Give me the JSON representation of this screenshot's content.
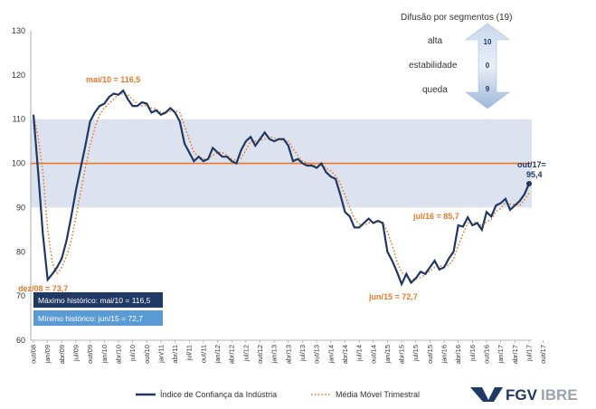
{
  "chart_data": {
    "type": "line",
    "ylim": [
      60,
      130
    ],
    "yticks": [
      60,
      70,
      80,
      90,
      100,
      110,
      120,
      130
    ],
    "neutral_line": 100,
    "band": [
      90,
      110
    ],
    "x_labels": [
      "out/08",
      "jan/09",
      "abr/09",
      "jul/09",
      "out/09",
      "jan/10",
      "abr/10",
      "jul/10",
      "out/10",
      "jan/11",
      "abr/11",
      "jul/11",
      "out/11",
      "jan/12",
      "abr/12",
      "jul/12",
      "out/12",
      "jan/13",
      "abr/13",
      "jul/13",
      "out/13",
      "jan/14",
      "abr/14",
      "jul/14",
      "out/14",
      "jan/15",
      "abr/15",
      "jul/15",
      "out/15",
      "jan/16",
      "abr/16",
      "jul/16",
      "out/16",
      "jan/17",
      "abr/17",
      "jul/17",
      "out/17"
    ],
    "series": [
      {
        "name": "Índice de Confiança da Indústria",
        "color": "#1F3864",
        "style": "solid",
        "values": [
          111.0,
          98.0,
          84.0,
          73.7,
          75.0,
          76.5,
          78.5,
          82.5,
          88.0,
          94.0,
          99.0,
          104.0,
          109.5,
          111.5,
          113.0,
          113.5,
          115.0,
          115.8,
          115.5,
          116.5,
          114.5,
          113.0,
          113.0,
          113.8,
          113.5,
          111.5,
          112.0,
          111.0,
          111.5,
          112.5,
          111.5,
          109.5,
          104.5,
          102.5,
          100.5,
          101.5,
          100.5,
          101.0,
          103.5,
          102.5,
          101.5,
          101.5,
          100.5,
          100.0,
          103.0,
          105.0,
          106.0,
          104.0,
          105.5,
          107.0,
          105.5,
          105.0,
          105.5,
          105.5,
          104.0,
          100.5,
          101.0,
          100.0,
          99.5,
          99.5,
          99.0,
          100.0,
          98.0,
          97.0,
          96.5,
          93.0,
          89.0,
          88.0,
          85.5,
          85.5,
          86.5,
          87.5,
          86.5,
          87.0,
          86.5,
          80.0,
          78.0,
          75.5,
          72.7,
          75.0,
          73.0,
          74.0,
          75.5,
          75.0,
          76.5,
          78.0,
          76.0,
          76.5,
          78.5,
          80.0,
          86.0,
          85.7,
          87.8,
          86.0,
          86.5,
          85.0,
          89.0,
          88.0,
          90.5,
          91.0,
          92.0,
          89.5,
          90.5,
          91.5,
          93.0,
          95.4
        ]
      },
      {
        "name": "Média Móvel Trimestral",
        "color": "#E8792A",
        "style": "dotted",
        "values": [
          111.0,
          106.0,
          98.0,
          85.0,
          77.5,
          75.0,
          76.5,
          79.0,
          82.5,
          88.0,
          93.5,
          99.0,
          104.0,
          108.0,
          111.0,
          112.5,
          113.5,
          114.5,
          115.5,
          115.8,
          115.5,
          114.5,
          113.5,
          113.0,
          113.2,
          112.5,
          112.3,
          111.5,
          111.5,
          111.8,
          112.0,
          111.5,
          108.5,
          105.5,
          102.5,
          101.5,
          101.0,
          101.0,
          101.8,
          102.5,
          102.5,
          101.8,
          101.0,
          100.7,
          101.2,
          103.0,
          105.0,
          105.0,
          105.2,
          105.5,
          106.0,
          105.8,
          105.3,
          105.3,
          105.0,
          103.3,
          101.8,
          100.5,
          100.2,
          99.7,
          99.3,
          99.5,
          99.0,
          98.3,
          97.2,
          95.5,
          92.8,
          90.0,
          87.5,
          86.3,
          86.0,
          86.5,
          86.8,
          87.0,
          86.7,
          84.5,
          81.5,
          77.8,
          75.4,
          74.4,
          73.6,
          74.0,
          74.2,
          74.8,
          75.7,
          76.5,
          76.8,
          76.8,
          77.0,
          78.3,
          81.5,
          84.0,
          86.5,
          86.5,
          86.8,
          85.8,
          86.8,
          87.3,
          89.2,
          89.8,
          91.2,
          90.8,
          90.7,
          90.5,
          91.7,
          93.3
        ]
      }
    ],
    "annotations": [
      {
        "text": "mai/10 = 116,5",
        "x_index": 19,
        "y": 116.5
      },
      {
        "text": "dez/08 = 73,7",
        "x_index": 3,
        "y": 73.7
      },
      {
        "text": "jun/15 = 72,7",
        "x_index": 80,
        "y": 72.7
      },
      {
        "text": "jul/16 = 85,7",
        "x_index": 93,
        "y": 85.7
      },
      {
        "text": "out/17=",
        "x_index": 108,
        "y": 95.4
      },
      {
        "text": "95,4",
        "x_index": 108,
        "y": 95.4
      }
    ],
    "info_boxes": [
      {
        "text": "Máximo histórico:  mai/10 = 116,5",
        "color": "#1F3864"
      },
      {
        "text": "Mínimo histórico:  jun/15 = 72,7",
        "color": "#5B9BD5"
      }
    ]
  },
  "diffusion": {
    "title": "Difusão por segmentos (19)",
    "rows": [
      {
        "label": "alta",
        "value": "10"
      },
      {
        "label": "estabilidade",
        "value": "0"
      },
      {
        "label": "queda",
        "value": "9"
      }
    ]
  },
  "logo": {
    "part1": "FGV",
    "part2": "IBRE"
  }
}
